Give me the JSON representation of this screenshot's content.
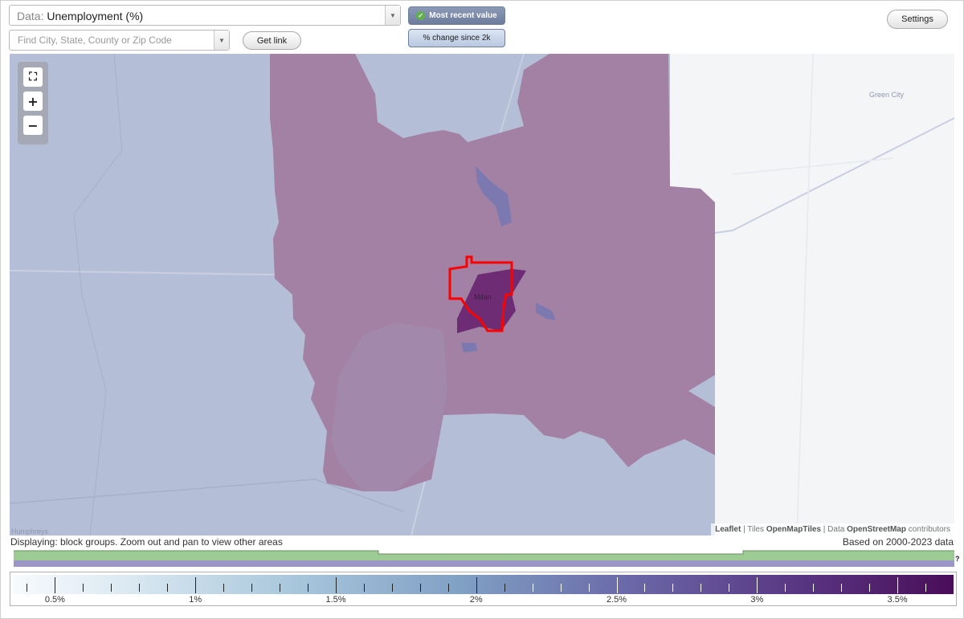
{
  "data_select": {
    "prefix": "Data:",
    "value": "Unemployment (%)"
  },
  "search": {
    "placeholder": "Find City, State, County or Zip Code"
  },
  "get_link_label": "Get link",
  "toggles": {
    "most_recent": "Most recent value",
    "pct_change": "% change since 2k"
  },
  "settings_label": "Settings",
  "map": {
    "places": {
      "milan": "Milan",
      "green_city": "Green City",
      "humphreys": "Humphreys"
    },
    "attribution": {
      "leaflet": "Leaflet",
      "tiles_prefix": "| Tiles",
      "tiles": "OpenMapTiles",
      "data_prefix": "| Data",
      "data": "OpenStreetMap",
      "suffix": "contributors"
    },
    "colors": {
      "region": "#a381a4",
      "selected": "#6d2c74",
      "outline": "#ff0000",
      "background": "#b4bed6"
    }
  },
  "status": {
    "left": "Displaying: block groups. Zoom out and pan to view other areas",
    "right": "Based on 2000-2023 data"
  },
  "timeline_help": "?",
  "legend": {
    "labels": [
      "0.5%",
      "1%",
      "1.5%",
      "2%",
      "2.5%",
      "3%",
      "3.5%"
    ],
    "range": [
      0.35,
      3.7
    ]
  }
}
